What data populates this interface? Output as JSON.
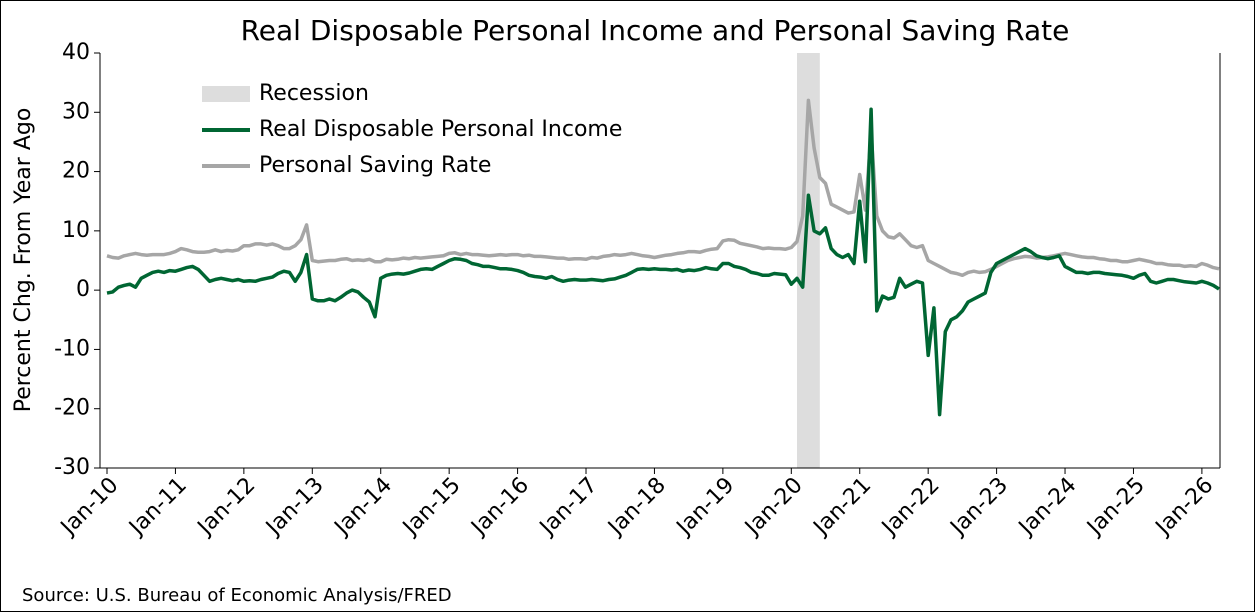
{
  "chart_data": {
    "type": "line",
    "title": "Real Disposable Personal Income and Personal Saving Rate",
    "y_label": "Percent Chg. From Year Ago",
    "source": "Source: U.S. Bureau of Economic Analysis/FRED",
    "legend": "upper left",
    "recession": {
      "name": "Recession",
      "color": "#dddddd",
      "span": [
        121,
        125
      ]
    },
    "categories": [
      "Jan-10",
      null,
      null,
      null,
      null,
      null,
      null,
      null,
      null,
      null,
      null,
      null,
      "Jan-11",
      null,
      null,
      null,
      null,
      null,
      null,
      null,
      null,
      null,
      null,
      null,
      "Jan-12",
      null,
      null,
      null,
      null,
      null,
      null,
      null,
      null,
      null,
      null,
      null,
      "Jan-13",
      null,
      null,
      null,
      null,
      null,
      null,
      null,
      null,
      null,
      null,
      null,
      "Jan-14",
      null,
      null,
      null,
      null,
      null,
      null,
      null,
      null,
      null,
      null,
      null,
      "Jan-15",
      null,
      null,
      null,
      null,
      null,
      null,
      null,
      null,
      null,
      null,
      null,
      "Jan-16",
      null,
      null,
      null,
      null,
      null,
      null,
      null,
      null,
      null,
      null,
      null,
      "Jan-17",
      null,
      null,
      null,
      null,
      null,
      null,
      null,
      null,
      null,
      null,
      null,
      "Jan-18",
      null,
      null,
      null,
      null,
      null,
      null,
      null,
      null,
      null,
      null,
      null,
      "Jan-19",
      null,
      null,
      null,
      null,
      null,
      null,
      null,
      null,
      null,
      null,
      null,
      "Jan-20",
      null,
      null,
      null,
      null,
      null,
      null,
      null,
      null,
      null,
      null,
      null,
      "Jan-21",
      null,
      null,
      null,
      null,
      null,
      null,
      null,
      null,
      null,
      null,
      null,
      "Jan-22",
      null,
      null,
      null,
      null,
      null,
      null,
      null,
      null,
      null,
      null,
      null,
      "Jan-23",
      null,
      null,
      null,
      null,
      null,
      null,
      null,
      null,
      null,
      null,
      null,
      "Jan-24",
      null,
      null,
      null,
      null,
      null,
      null,
      null,
      null,
      null,
      null,
      null,
      "Jan-25",
      null,
      null,
      null,
      null,
      null,
      null,
      null,
      null,
      null,
      null,
      null,
      "Jan-26",
      null,
      null,
      null
    ],
    "series": [
      {
        "name": "Real Disposable Personal Income",
        "color": "#006633",
        "values": [
          -0.5,
          -0.3,
          0.5,
          0.8,
          1,
          0.5,
          2,
          2.5,
          3,
          3.2,
          3,
          3.3,
          3.2,
          3.5,
          3.8,
          4,
          3.5,
          2.5,
          1.5,
          1.8,
          2,
          1.8,
          1.6,
          1.8,
          1.5,
          1.6,
          1.5,
          1.8,
          2,
          2.2,
          2.8,
          3.2,
          3,
          1.5,
          3,
          6,
          -1.5,
          -1.8,
          -1.8,
          -1.5,
          -1.8,
          -1.2,
          -0.5,
          0,
          -0.3,
          -1.2,
          -2,
          -4.5,
          2,
          2.5,
          2.7,
          2.8,
          2.7,
          2.9,
          3.2,
          3.5,
          3.6,
          3.5,
          4,
          4.5,
          5,
          5.3,
          5.2,
          5,
          4.5,
          4.3,
          4,
          4,
          3.8,
          3.6,
          3.6,
          3.5,
          3.3,
          3,
          2.5,
          2.3,
          2.2,
          2,
          2.3,
          1.8,
          1.5,
          1.7,
          1.8,
          1.7,
          1.7,
          1.8,
          1.7,
          1.6,
          1.8,
          1.9,
          2.2,
          2.5,
          3,
          3.5,
          3.6,
          3.5,
          3.6,
          3.5,
          3.5,
          3.4,
          3.5,
          3.2,
          3.4,
          3.3,
          3.5,
          3.8,
          3.6,
          3.5,
          4.5,
          4.5,
          4,
          3.8,
          3.5,
          3,
          2.8,
          2.5,
          2.5,
          2.8,
          2.7,
          2.6,
          1,
          2,
          0.5,
          16,
          10,
          9.5,
          10.5,
          7,
          6,
          5.5,
          6,
          4.5,
          15,
          4.8,
          30.5,
          -3.5,
          -1,
          -1.5,
          -1.2,
          2,
          0.5,
          1,
          1.5,
          1.2,
          -11,
          -3,
          -21,
          -7,
          -5,
          -4.5,
          -3.5,
          -2,
          -1.5,
          -1,
          -0.5,
          3,
          4.5,
          5,
          5.5,
          6,
          6.5,
          7,
          6.5,
          5.8,
          5.5,
          5.3,
          5.5,
          5.8,
          4,
          3.5,
          3,
          3,
          2.8,
          3,
          3,
          2.8,
          2.7,
          2.6,
          2.5,
          2.3,
          2,
          2.5,
          2.8,
          1.5,
          1.2,
          1.5,
          1.8,
          1.8,
          1.6,
          1.4,
          1.3,
          1.2,
          1.5,
          1.2,
          0.8,
          0.2
        ]
      },
      {
        "name": "Personal Saving Rate",
        "color": "#a6a6a6",
        "values": [
          5.8,
          5.5,
          5.4,
          5.8,
          6,
          6.2,
          6,
          5.9,
          6,
          6,
          6,
          6.2,
          6.5,
          7,
          6.8,
          6.5,
          6.4,
          6.4,
          6.5,
          6.8,
          6.5,
          6.7,
          6.6,
          6.8,
          7.5,
          7.5,
          7.8,
          7.8,
          7.6,
          7.8,
          7.5,
          7,
          7,
          7.5,
          8.5,
          11,
          5,
          4.8,
          4.9,
          5,
          5,
          5.2,
          5.3,
          5,
          5.1,
          5,
          5.2,
          4.8,
          4.8,
          5.2,
          5.1,
          5.2,
          5.4,
          5.3,
          5.5,
          5.4,
          5.5,
          5.6,
          5.7,
          5.8,
          6.2,
          6.3,
          6,
          6.2,
          6,
          6,
          5.9,
          5.8,
          5.9,
          6,
          5.9,
          6,
          6,
          5.8,
          5.9,
          5.7,
          5.7,
          5.6,
          5.5,
          5.4,
          5.4,
          5.2,
          5.3,
          5.3,
          5.2,
          5.5,
          5.4,
          5.7,
          5.8,
          6,
          5.9,
          6,
          6.2,
          6,
          5.8,
          5.7,
          5.5,
          5.7,
          5.9,
          6,
          6.2,
          6.3,
          6.5,
          6.5,
          6.4,
          6.7,
          6.9,
          7,
          8.3,
          8.5,
          8.4,
          7.9,
          7.7,
          7.5,
          7.3,
          7,
          7.1,
          7,
          7,
          6.9,
          7.2,
          8.2,
          12.5,
          32,
          24,
          19,
          18,
          14.5,
          14,
          13.5,
          13,
          13.2,
          19.5,
          13.5,
          26.5,
          12.5,
          10,
          9,
          8.8,
          9.5,
          8.5,
          7.5,
          7.2,
          7.5,
          5,
          4.5,
          4,
          3.5,
          3,
          2.8,
          2.5,
          3,
          3.2,
          3,
          3.1,
          3.5,
          4,
          4.5,
          5,
          5.3,
          5.5,
          5.7,
          5.6,
          5.4,
          5.5,
          5.6,
          5.8,
          6,
          6.2,
          6,
          5.8,
          5.6,
          5.5,
          5.5,
          5.3,
          5.2,
          5,
          5,
          4.8,
          4.8,
          5,
          5.2,
          5,
          4.8,
          4.5,
          4.5,
          4.3,
          4.2,
          4.2,
          4,
          4.1,
          4,
          4.5,
          4.2,
          3.8,
          3.6
        ]
      }
    ],
    "ylim": [
      -30,
      40
    ],
    "yticks": [
      -30,
      -20,
      -10,
      0,
      10,
      20,
      30,
      40
    ]
  }
}
